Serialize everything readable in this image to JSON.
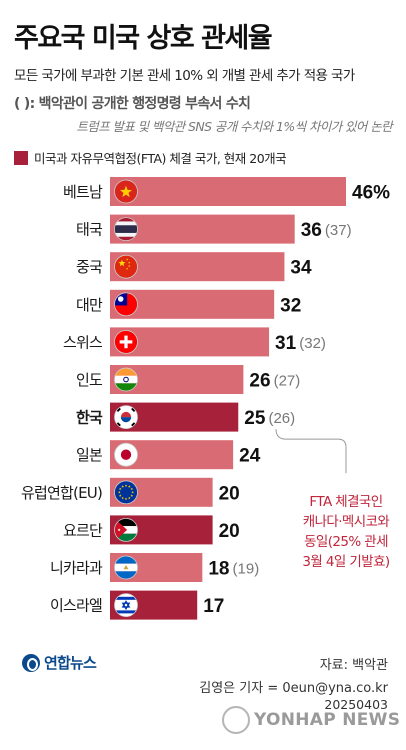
{
  "header": {
    "title": "주요국 미국 상호 관세율",
    "subtitle": "모든 국가에 부과한 기본 관세 10% 외 개별 관세 추가 적용 국가",
    "note_line1": "(  ): 백악관이 공개한 행정명령 부속서 수치",
    "note_line2": "트럼프 발표 및 백악관 SNS 공개 수치와 1%씩 차이가 있어 논란",
    "legend_label": "미국과 자유무역협정(FTA) 체결 국가, 현재 20개국"
  },
  "colors": {
    "regular_bar": "#d86b73",
    "fta_bar": "#a8213a",
    "annotation": "#c0263c",
    "callout_line": "#999999"
  },
  "chart_data": {
    "type": "bar",
    "orientation": "horizontal",
    "categories": [
      "베트남",
      "태국",
      "중국",
      "대만",
      "스위스",
      "인도",
      "한국",
      "일본",
      "유럽연합(EU)",
      "요르단",
      "니카라과",
      "이스라엘"
    ],
    "values": [
      46,
      36,
      34,
      32,
      31,
      26,
      25,
      24,
      20,
      20,
      18,
      17
    ],
    "value_labels": [
      "46%",
      "36",
      "34",
      "32",
      "31",
      "26",
      "25",
      "24",
      "20",
      "20",
      "18",
      "17"
    ],
    "annex_values": [
      "",
      "(37)",
      "",
      "",
      "(32)",
      "(27)",
      "(26)",
      "",
      "",
      "",
      "(19)",
      ""
    ],
    "fta": [
      false,
      false,
      false,
      false,
      false,
      false,
      true,
      false,
      false,
      true,
      false,
      true
    ],
    "bold_category": "한국",
    "flag_icons": [
      "vietnam-flag-icon",
      "thailand-flag-icon",
      "china-flag-icon",
      "taiwan-flag-icon",
      "switzerland-flag-icon",
      "india-flag-icon",
      "korea-flag-icon",
      "japan-flag-icon",
      "eu-flag-icon",
      "jordan-flag-icon",
      "nicaragua-flag-icon",
      "israel-flag-icon"
    ],
    "annotation": [
      "FTA 체결국인",
      "캐나다·멕시코와",
      "동일(25% 관세",
      "3월 4일 기발효)"
    ]
  },
  "footer": {
    "logo": "연합뉴스",
    "source": "자료: 백악관",
    "credit": "김영은 기자 = 0eun@yna.co.kr",
    "date": "20250403",
    "watermark": "YONHAP NEWS"
  }
}
